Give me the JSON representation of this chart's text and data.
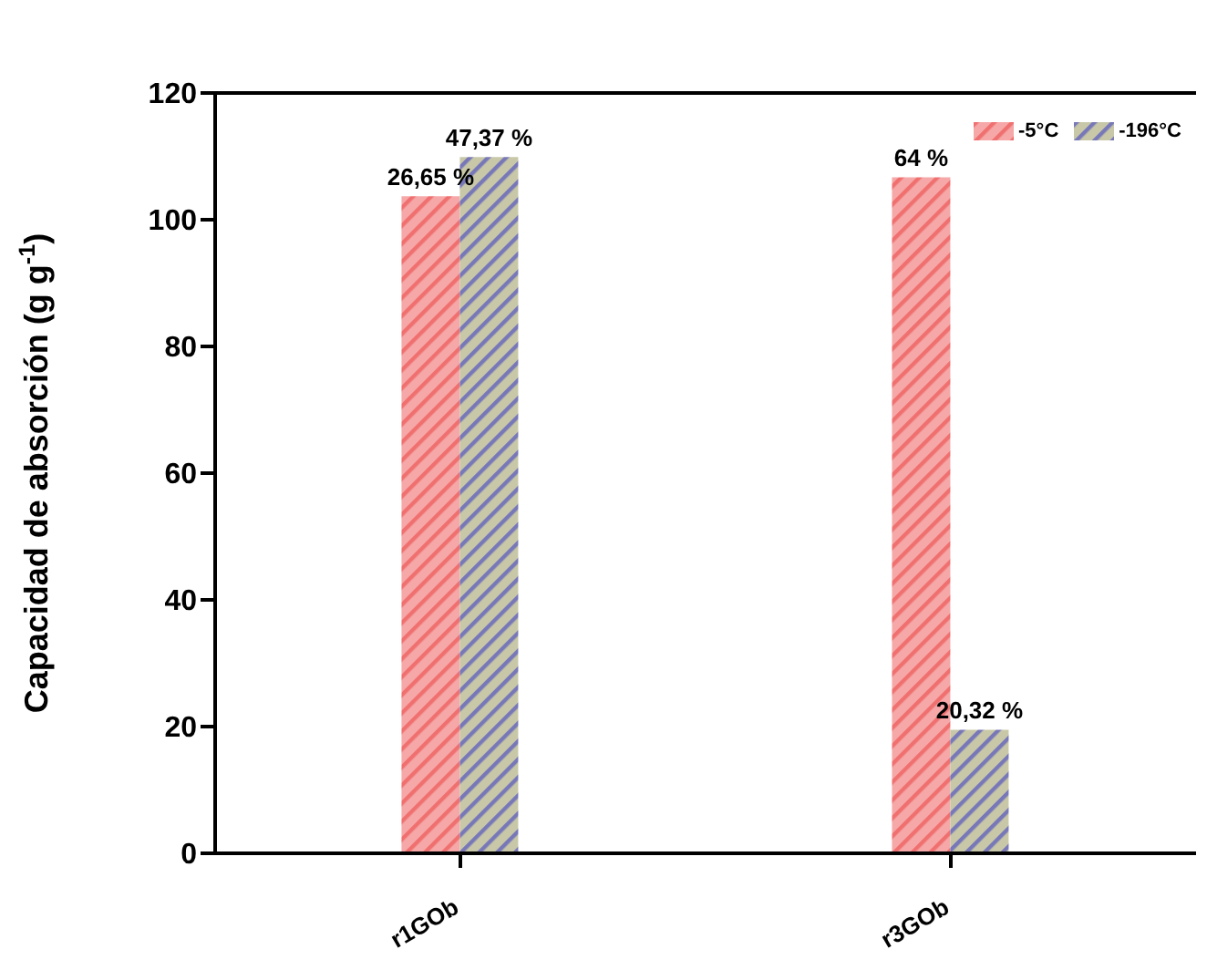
{
  "chart_data": {
    "type": "bar",
    "ylabel": "Capacidad de absorción (g g$^{-1}$)",
    "categories": [
      "r1GOb",
      "r3GOb"
    ],
    "series": [
      {
        "name": "-5°C",
        "color": "#f07070",
        "values": [
          103.7,
          106.7
        ]
      },
      {
        "name": "-196°C",
        "color": "#7878b8",
        "values": [
          109.9,
          19.5
        ]
      }
    ],
    "annotations": [
      {
        "text": "26,65 %",
        "x": "r1GOb",
        "y": 103.7
      },
      {
        "text": "47,37 %",
        "x": "r1GOb",
        "y": 109.9
      },
      {
        "text": "64 %",
        "x": "r3GOb",
        "y": 106.7
      },
      {
        "text": "20,32 %",
        "x": "r3GOb",
        "y": 19.5
      }
    ],
    "ylim": [
      0,
      120
    ],
    "yticks": [
      0,
      20,
      40,
      60,
      80,
      100,
      120
    ],
    "legend": "top right"
  }
}
